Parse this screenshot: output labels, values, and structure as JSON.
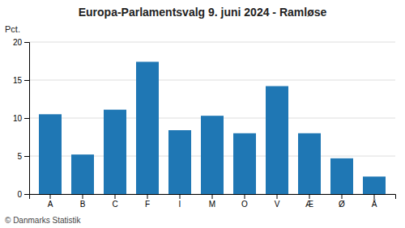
{
  "chart_data": {
    "type": "bar",
    "title": "Europa-Parlamentsvalg 9. juni 2024 - Ramløse",
    "ylabel": "Pct.",
    "annotations": [
      "© Danmarks Statistik"
    ],
    "categories": [
      "A",
      "B",
      "C",
      "F",
      "I",
      "M",
      "O",
      "V",
      "Æ",
      "Ø",
      "Å"
    ],
    "values": [
      10.5,
      5.2,
      11.1,
      17.4,
      8.4,
      10.3,
      8.0,
      14.2,
      8.0,
      4.7,
      2.3
    ],
    "ylim": [
      0,
      20
    ],
    "yticks": [
      0,
      5,
      10,
      15,
      20
    ],
    "grid": true
  }
}
